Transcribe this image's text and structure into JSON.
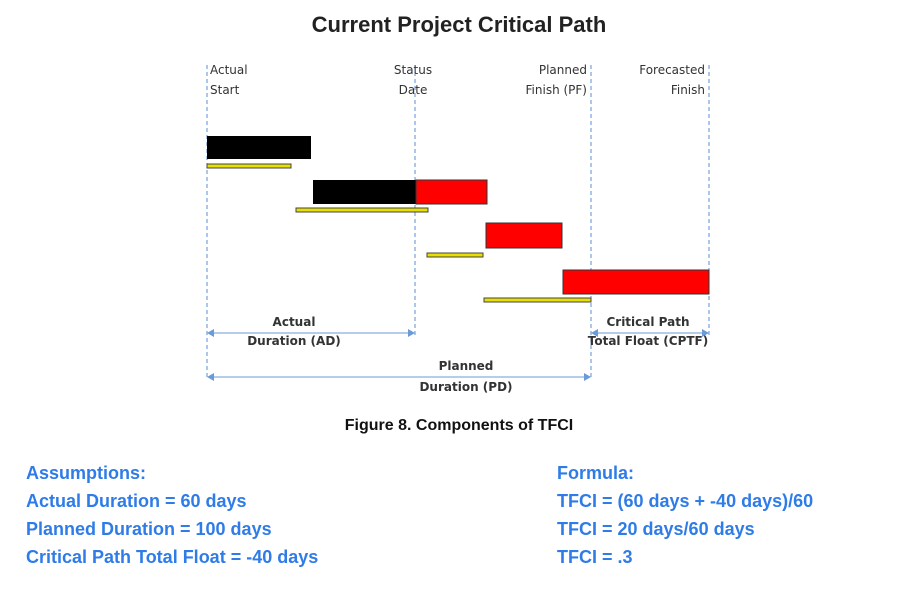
{
  "title": "Current Project Critical Path",
  "markers": {
    "actual_start": [
      "Actual",
      "Start"
    ],
    "status_date": [
      "Status",
      "Date"
    ],
    "planned_finish": [
      "Planned",
      "Finish (PF)"
    ],
    "forecasted_finish": [
      "Forecasted",
      "Finish"
    ]
  },
  "dimensions": {
    "actual_duration": [
      "Actual",
      "Duration (AD)"
    ],
    "critical_path_total_float": [
      "Critical Path",
      "Total Float (CPTF)"
    ],
    "planned_duration": [
      "Planned",
      "Duration (PD)"
    ]
  },
  "caption": "Figure 8. Components of TFCI",
  "assumptions": {
    "heading": "Assumptions:",
    "lines": [
      "Actual Duration = 60 days",
      "Planned Duration = 100 days",
      "Critical Path Total Float = -40 days"
    ]
  },
  "formula": {
    "heading": "Formula:",
    "lines": [
      "TFCI = (60 days + -40 days)/60",
      "TFCI = 20 days/60 days",
      "TFCI = .3"
    ]
  },
  "colors": {
    "actual_bar": "#000000",
    "forecast_bar": "#ff0000",
    "baseline_bar": "#e8e000",
    "text_blue": "#2f7ce8",
    "guide_line": "#5b8fd6"
  }
}
